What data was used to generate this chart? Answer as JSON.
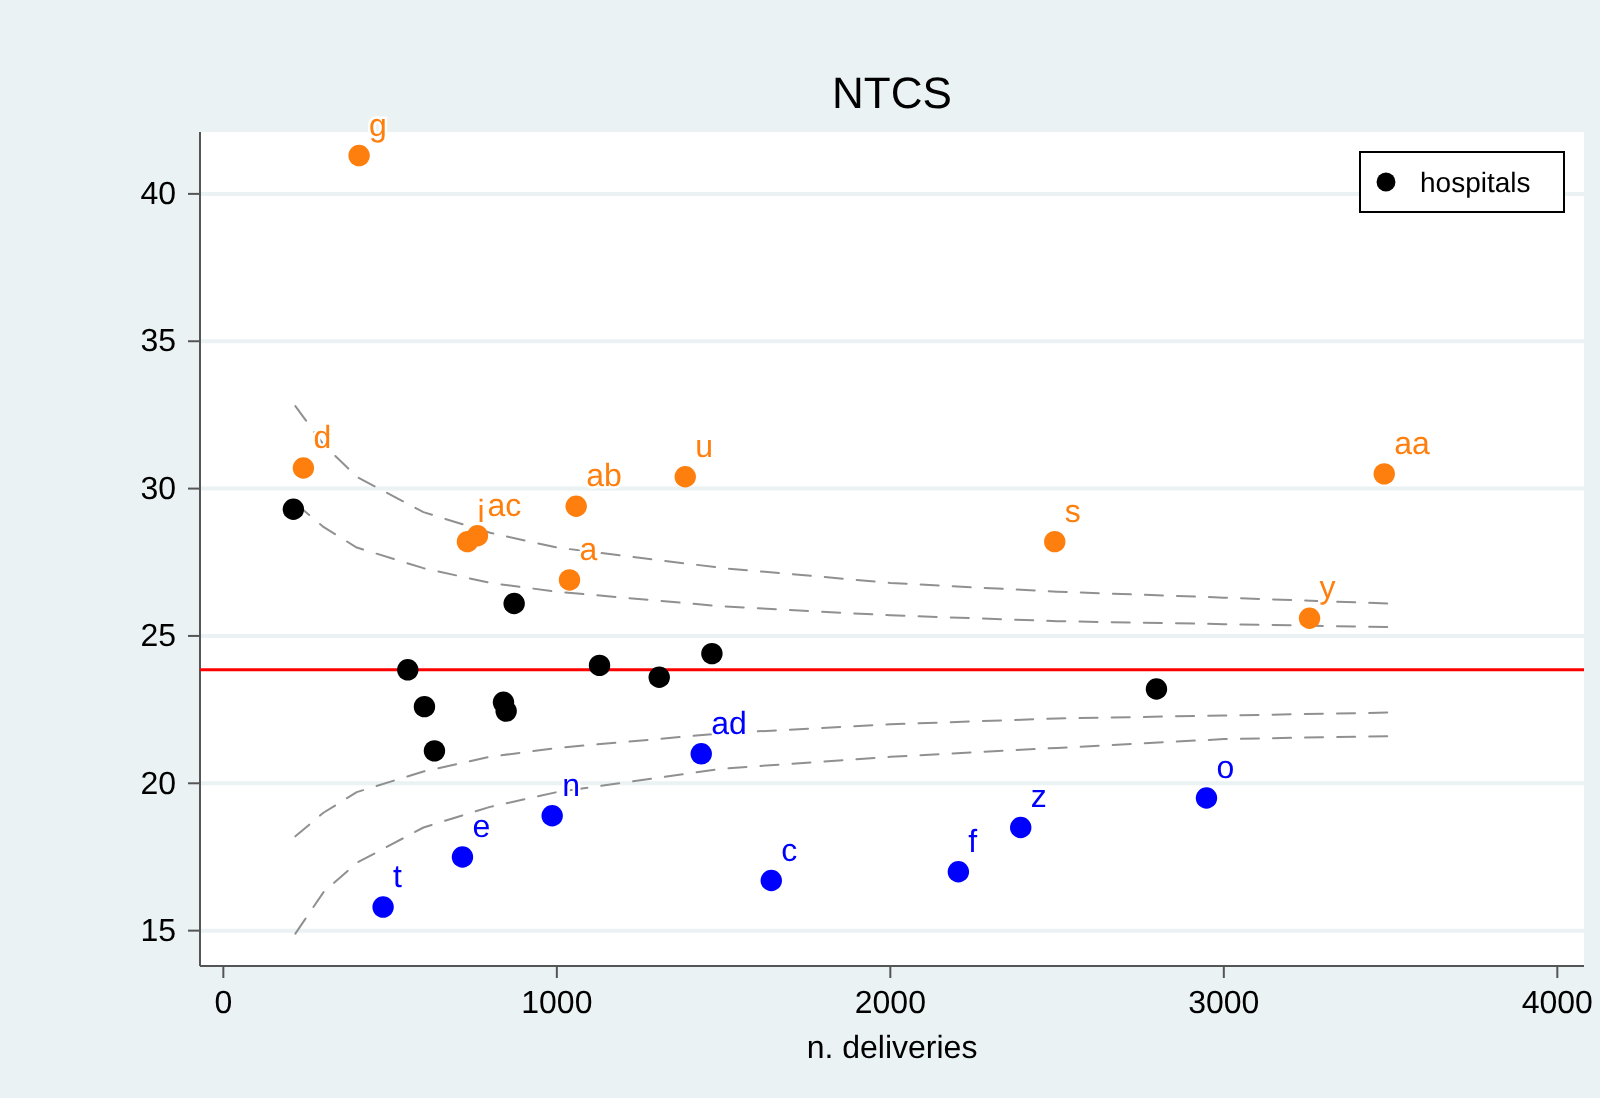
{
  "chart_data": {
    "type": "scatter",
    "title": "NTCS",
    "xlabel": "n. deliveries",
    "xlim": [
      -70,
      4080
    ],
    "xticks": [
      0,
      1000,
      2000,
      3000,
      4000
    ],
    "ylim": [
      13.8,
      42.1
    ],
    "yticks": [
      15,
      20,
      25,
      30,
      35,
      40
    ],
    "grid": "y",
    "legend": "top right",
    "marker": "circle",
    "ref_lines": [
      {
        "axis": "y",
        "value": 23.85,
        "color": "#ff0000"
      }
    ],
    "series": [
      {
        "type": "line",
        "color": "#909090",
        "line_style": "dashed",
        "marker": "none",
        "x": [
          216,
          300,
          400,
          600,
          800,
          1000,
          1500,
          2000,
          2500,
          3000,
          3490
        ],
        "values": [
          32.8,
          31.5,
          30.4,
          29.2,
          28.5,
          28.0,
          27.3,
          26.8,
          26.5,
          26.3,
          26.1
        ]
      },
      {
        "type": "line",
        "color": "#909090",
        "line_style": "dashed",
        "marker": "none",
        "x": [
          216,
          300,
          400,
          600,
          800,
          1000,
          1500,
          2000,
          2500,
          3000,
          3490
        ],
        "values": [
          29.5,
          28.7,
          28.0,
          27.3,
          26.8,
          26.5,
          26.0,
          25.7,
          25.5,
          25.4,
          25.3
        ]
      },
      {
        "type": "line",
        "color": "#909090",
        "line_style": "dashed",
        "marker": "none",
        "x": [
          216,
          300,
          400,
          600,
          800,
          1000,
          1500,
          2000,
          2500,
          3000,
          3490
        ],
        "values": [
          18.2,
          19.0,
          19.7,
          20.4,
          20.9,
          21.2,
          21.7,
          22.0,
          22.2,
          22.3,
          22.4
        ]
      },
      {
        "type": "line",
        "color": "#909090",
        "line_style": "dashed",
        "marker": "none",
        "x": [
          216,
          300,
          400,
          600,
          800,
          1000,
          1500,
          2000,
          2500,
          3000,
          3490
        ],
        "values": [
          14.9,
          16.3,
          17.3,
          18.5,
          19.2,
          19.7,
          20.5,
          20.9,
          21.2,
          21.5,
          21.6
        ]
      },
      {
        "type": "scatter",
        "name": "hospitals",
        "color": "#000000",
        "x": [
          210,
          872,
          553,
          603,
          633,
          840,
          848,
          1128,
          1307,
          1465,
          2798
        ],
        "values": [
          29.3,
          26.1,
          23.85,
          22.6,
          21.1,
          22.75,
          22.45,
          24.0,
          23.6,
          24.4,
          23.2
        ]
      },
      {
        "type": "scatter",
        "color": "#ff7f0e",
        "x": [
          407,
          240,
          732,
          762,
          1058,
          1385,
          1038,
          2493,
          3481,
          3257
        ],
        "values": [
          41.3,
          30.7,
          28.2,
          28.4,
          29.4,
          30.4,
          26.9,
          28.2,
          30.5,
          25.6
        ],
        "value_labels": [
          "g",
          "d",
          "i",
          "ac",
          "ab",
          "u",
          "a",
          "s",
          "aa",
          "y"
        ]
      },
      {
        "type": "scatter",
        "color": "#0000ff",
        "x": [
          479,
          717,
          986,
          1433,
          1643,
          2204,
          2391,
          2948
        ],
        "values": [
          15.8,
          17.5,
          18.9,
          21.0,
          16.7,
          17.0,
          18.5,
          19.5
        ],
        "value_labels": [
          "t",
          "e",
          "n",
          "ad",
          "c",
          "f",
          "z",
          "o"
        ]
      }
    ]
  }
}
